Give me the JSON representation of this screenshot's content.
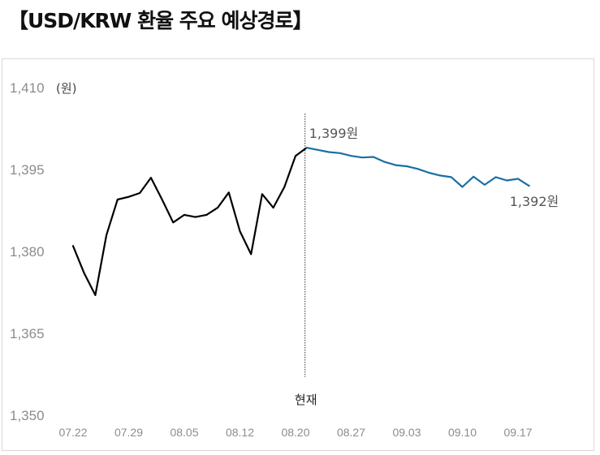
{
  "title": "【USD/KRW 환율 주요 예상경로】",
  "chart_data": {
    "type": "line",
    "ylabel": "(원)",
    "ylim": [
      1350,
      1410
    ],
    "yticks": [
      "1,350",
      "1,365",
      "1,380",
      "1,395",
      "1,410"
    ],
    "ytick_values": [
      1350,
      1365,
      1380,
      1395,
      1410
    ],
    "xticks": [
      "07.22",
      "07.29",
      "08.05",
      "08.12",
      "08.20",
      "08.27",
      "09.03",
      "09.10",
      "09.17"
    ],
    "xtick_index": [
      0,
      5,
      10,
      15,
      20,
      25,
      30,
      35,
      40
    ],
    "current_marker_label": "현재",
    "current_index": 21,
    "grid": false,
    "series": [
      {
        "color": "#000000",
        "start_index": 0,
        "values": [
          1381.0,
          1376.0,
          1372.0,
          1383.0,
          1389.5,
          1390.0,
          1390.7,
          1393.5,
          1389.5,
          1385.3,
          1386.7,
          1386.3,
          1386.7,
          1388.0,
          1390.8,
          1383.7,
          1379.5,
          1390.5,
          1388.0,
          1391.8,
          1397.5,
          1399.0
        ]
      },
      {
        "color": "#1a6fa3",
        "start_index": 21,
        "values": [
          1399.0,
          1398.6,
          1398.2,
          1398.0,
          1397.5,
          1397.2,
          1397.3,
          1396.4,
          1395.8,
          1395.6,
          1395.1,
          1394.4,
          1393.9,
          1393.6,
          1391.8,
          1393.7,
          1392.2,
          1393.6,
          1393.0,
          1393.3,
          1392.0
        ]
      }
    ],
    "annotations": [
      {
        "text": "1,399원",
        "index": 21,
        "value": 1399
      },
      {
        "text": "1,392원",
        "index": 41,
        "value": 1392
      }
    ]
  }
}
